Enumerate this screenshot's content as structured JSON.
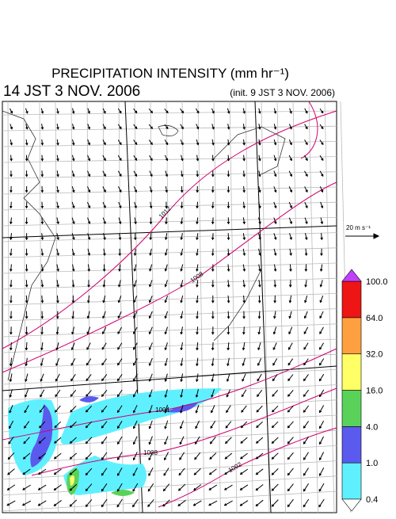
{
  "header": {
    "title": "PRECIPITATION INTENSITY (mm hr⁻¹)",
    "valid_time": "14 JST 3 NOV. 2006",
    "init_time": "(init. 9 JST 3 NOV. 2006)"
  },
  "wind_reference": {
    "label": "20 m s⁻¹"
  },
  "colorbar": {
    "levels": [
      {
        "value": 0.4,
        "label": "0.4"
      },
      {
        "value": 1,
        "label": "1.0"
      },
      {
        "value": 4,
        "label": "4.0"
      },
      {
        "value": 16,
        "label": "16.0"
      },
      {
        "value": 32,
        "label": "32.0"
      },
      {
        "value": 64,
        "label": "64.0"
      },
      {
        "value": 100,
        "label": "100.0"
      }
    ],
    "colors": [
      "#5ff0ff",
      "#5a5aee",
      "#5ad25a",
      "#ffff66",
      "#ffa040",
      "#ee1515"
    ],
    "over_color": "#c040ff"
  },
  "isobar_labels": [
    "1012",
    "1008",
    "1004",
    "1008",
    "1002"
  ]
}
